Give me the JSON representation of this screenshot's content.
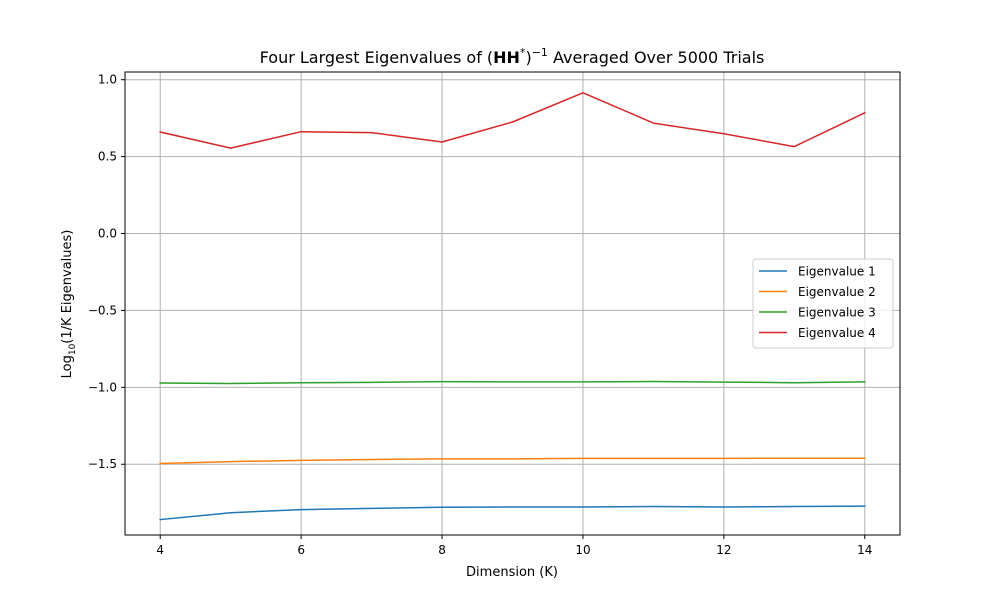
{
  "chart_data": {
    "type": "line",
    "title_prefix": "Four Largest Eigenvalues of (",
    "title_bold": "HH",
    "title_sup_star": "*",
    "title_close": ")",
    "title_sup_inv": "−1",
    "title_suffix": " Averaged Over 5000 Trials",
    "xlabel": "Dimension (K)",
    "ylabel_prefix": "Log",
    "ylabel_sub": "10",
    "ylabel_suffix": "(1/K Eigenvalues)",
    "x": [
      4,
      5,
      6,
      7,
      8,
      9,
      10,
      11,
      12,
      13,
      14
    ],
    "xlim": [
      3.5,
      14.5
    ],
    "ylim": [
      -1.96,
      1.05
    ],
    "xticks": [
      4,
      6,
      8,
      10,
      12,
      14
    ],
    "yticks": [
      -1.5,
      -1.0,
      -0.5,
      0.0,
      0.5,
      1.0
    ],
    "xtick_labels": [
      "4",
      "6",
      "8",
      "10",
      "12",
      "14"
    ],
    "ytick_labels": [
      "−1.5",
      "−1.0",
      "−0.5",
      "0.0",
      "0.5",
      "1.0"
    ],
    "grid": true,
    "legend_position": "center-right",
    "series": [
      {
        "name": "Eigenvalue 1",
        "color": "#1f77b4",
        "values": [
          -1.86,
          -1.815,
          -1.795,
          -1.787,
          -1.78,
          -1.778,
          -1.778,
          -1.775,
          -1.778,
          -1.775,
          -1.772
        ]
      },
      {
        "name": "Eigenvalue 2",
        "color": "#ff7f0e",
        "values": [
          -1.495,
          -1.483,
          -1.475,
          -1.469,
          -1.465,
          -1.465,
          -1.462,
          -1.462,
          -1.462,
          -1.461,
          -1.461
        ]
      },
      {
        "name": "Eigenvalue 3",
        "color": "#2ca02c",
        "values": [
          -0.972,
          -0.975,
          -0.97,
          -0.968,
          -0.963,
          -0.965,
          -0.965,
          -0.962,
          -0.966,
          -0.97,
          -0.965
        ]
      },
      {
        "name": "Eigenvalue 4",
        "color": "#d62728",
        "values": [
          0.66,
          0.555,
          0.662,
          0.656,
          0.595,
          0.725,
          0.915,
          0.718,
          0.648,
          0.565,
          0.785
        ]
      }
    ]
  }
}
